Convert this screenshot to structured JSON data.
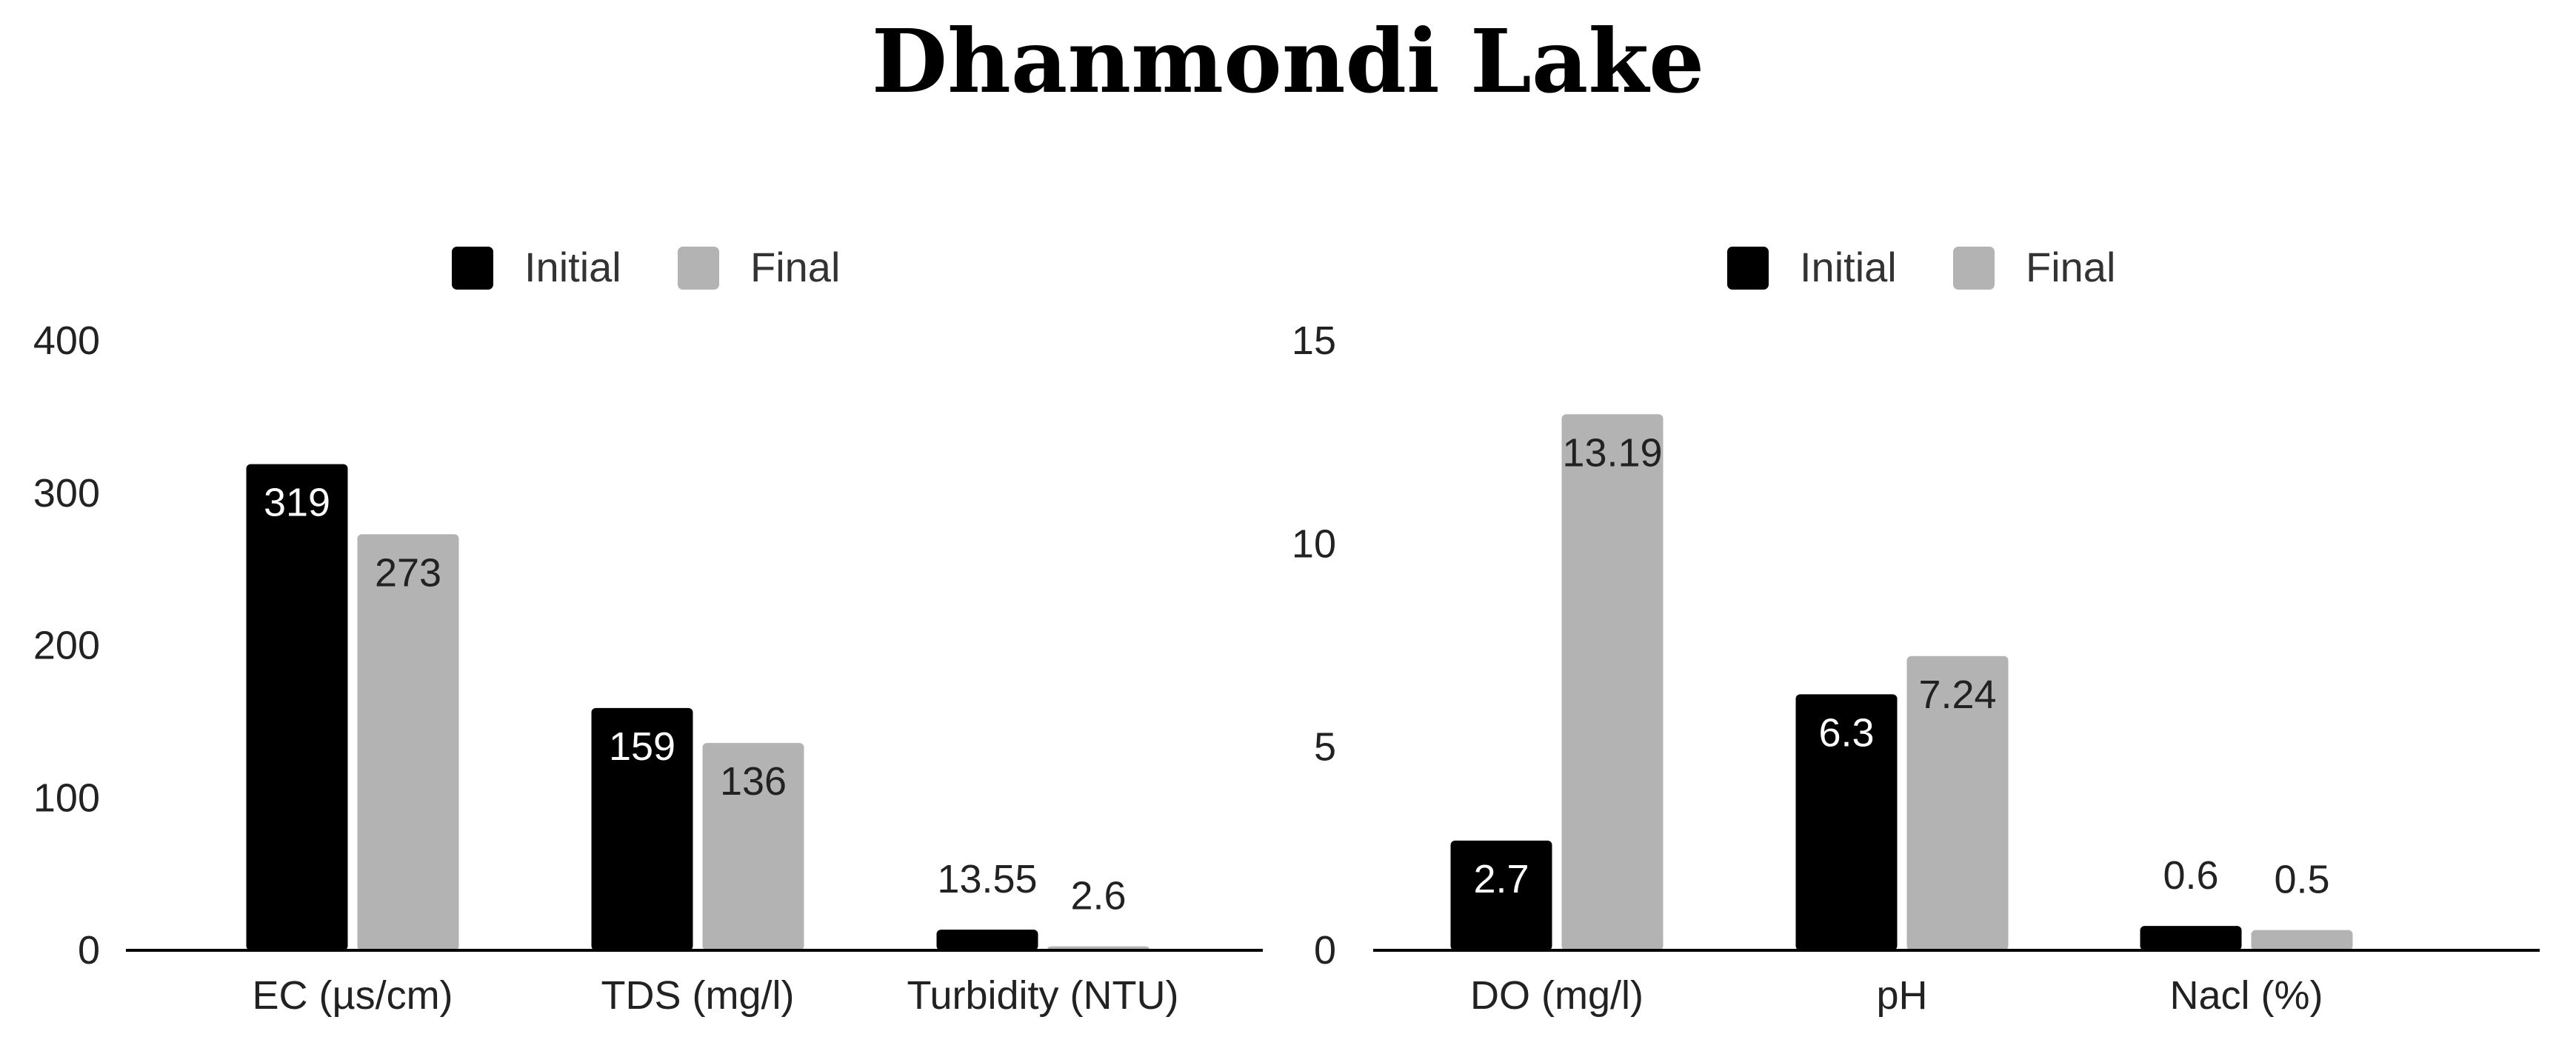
{
  "title": "Dhanmondi Lake",
  "colors": {
    "initial": "#000000",
    "final": "#b3b3b3",
    "label_inside_dark": "#ffffff",
    "label_dark": "#222222"
  },
  "chart_data": [
    {
      "type": "bar",
      "categories": [
        "EC (µs/cm)",
        "TDS (mg/l)",
        "Turbidity (NTU)"
      ],
      "series": [
        {
          "name": "Initial",
          "values": [
            319,
            159,
            13.55
          ],
          "labels": [
            "319",
            "159",
            "13.55"
          ]
        },
        {
          "name": "Final",
          "values": [
            273,
            136,
            2.6
          ],
          "labels": [
            "273",
            "136",
            "2.6"
          ]
        }
      ],
      "yticks": [
        "0",
        "100",
        "200",
        "300",
        "400"
      ],
      "ylim": [
        0,
        400
      ],
      "legend": "top-center",
      "grid": false
    },
    {
      "type": "bar",
      "categories": [
        "DO (mg/l)",
        "pH",
        "Nacl (%)"
      ],
      "series": [
        {
          "name": "Initial",
          "values": [
            2.7,
            6.3,
            0.6
          ],
          "labels": [
            "2.7",
            "6.3",
            "0.6"
          ]
        },
        {
          "name": "Final",
          "values": [
            13.19,
            7.24,
            0.5
          ],
          "labels": [
            "13.19",
            "7.24",
            "0.5"
          ]
        }
      ],
      "yticks": [
        "0",
        "5",
        "10",
        "15"
      ],
      "ylim": [
        0,
        15
      ],
      "legend": "top-center",
      "grid": false
    }
  ]
}
